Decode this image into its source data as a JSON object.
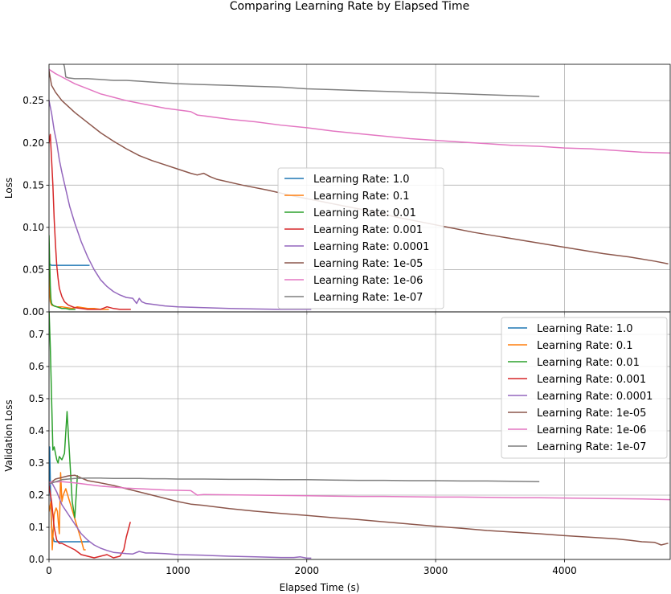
{
  "figure": {
    "suptitle": "Comparing Learning Rate by Elapsed Time"
  },
  "chart_data": [
    {
      "type": "line",
      "title": "",
      "xlabel": "",
      "ylabel": "Loss",
      "xlim": [
        0,
        4820
      ],
      "ylim": [
        0,
        0.293
      ],
      "xticks": [
        0,
        1000,
        2000,
        3000,
        4000
      ],
      "yticks": [
        0.0,
        0.05,
        0.1,
        0.15,
        0.2,
        0.25
      ],
      "ytick_labels": [
        "0.00",
        "0.05",
        "0.10",
        "0.15",
        "0.20",
        "0.25"
      ],
      "show_xtick_labels": false,
      "grid": true,
      "legend_placement": "center",
      "series": [
        {
          "name": "Learning Rate: 1.0",
          "color": "#1f77b4",
          "x": [
            0,
            5,
            10,
            20,
            40,
            100,
            200,
            310
          ],
          "y": [
            0.06,
            0.055,
            0.056,
            0.055,
            0.055,
            0.055,
            0.055,
            0.055
          ]
        },
        {
          "name": "Learning Rate: 0.1",
          "color": "#ff7f0e",
          "x": [
            0,
            5,
            10,
            20,
            40,
            60,
            100,
            140,
            180,
            200,
            220,
            260,
            300,
            350,
            400,
            460
          ],
          "y": [
            0.05,
            0.025,
            0.012,
            0.008,
            0.007,
            0.006,
            0.006,
            0.005,
            0.004,
            0.005,
            0.006,
            0.005,
            0.004,
            0.004,
            0.003,
            0.003
          ]
        },
        {
          "name": "Learning Rate: 0.01",
          "color": "#2ca02c",
          "x": [
            0,
            5,
            10,
            15,
            20,
            30,
            40,
            60,
            80,
            100,
            130,
            160,
            200
          ],
          "y": [
            0.09,
            0.06,
            0.03,
            0.015,
            0.01,
            0.008,
            0.007,
            0.006,
            0.005,
            0.004,
            0.004,
            0.003,
            0.003
          ]
        },
        {
          "name": "Learning Rate: 0.001",
          "color": "#d62728",
          "x": [
            0,
            10,
            20,
            30,
            40,
            50,
            60,
            70,
            80,
            100,
            120,
            150,
            200,
            250,
            300,
            350,
            400,
            450,
            500,
            550,
            600,
            630
          ],
          "y": [
            0.2,
            0.21,
            0.18,
            0.15,
            0.11,
            0.08,
            0.055,
            0.04,
            0.028,
            0.018,
            0.012,
            0.008,
            0.005,
            0.004,
            0.003,
            0.003,
            0.003,
            0.006,
            0.004,
            0.003,
            0.003,
            0.003
          ]
        },
        {
          "name": "Learning Rate: 0.0001",
          "color": "#9467bd",
          "x": [
            0,
            20,
            40,
            60,
            80,
            100,
            130,
            160,
            200,
            250,
            300,
            350,
            400,
            450,
            500,
            550,
            600,
            650,
            680,
            700,
            720,
            750,
            800,
            900,
            1000,
            1200,
            1400,
            1600,
            1800,
            2030
          ],
          "y": [
            0.25,
            0.235,
            0.215,
            0.2,
            0.18,
            0.165,
            0.145,
            0.125,
            0.105,
            0.083,
            0.065,
            0.05,
            0.038,
            0.03,
            0.024,
            0.02,
            0.017,
            0.016,
            0.01,
            0.016,
            0.012,
            0.01,
            0.009,
            0.007,
            0.006,
            0.005,
            0.004,
            0.0035,
            0.003,
            0.003
          ]
        },
        {
          "name": "Learning Rate: 1e-05",
          "color": "#8c564b",
          "x": [
            0,
            20,
            50,
            100,
            150,
            200,
            300,
            400,
            500,
            600,
            700,
            800,
            900,
            1000,
            1100,
            1150,
            1200,
            1250,
            1300,
            1500,
            1700,
            1900,
            2100,
            2300,
            2500,
            2700,
            2900,
            3100,
            3300,
            3500,
            3700,
            3900,
            4100,
            4300,
            4500,
            4700,
            4800
          ],
          "y": [
            0.285,
            0.268,
            0.26,
            0.25,
            0.243,
            0.236,
            0.224,
            0.212,
            0.202,
            0.193,
            0.185,
            0.179,
            0.174,
            0.169,
            0.164,
            0.162,
            0.164,
            0.16,
            0.157,
            0.15,
            0.144,
            0.137,
            0.131,
            0.125,
            0.119,
            0.112,
            0.106,
            0.1,
            0.094,
            0.089,
            0.084,
            0.079,
            0.074,
            0.069,
            0.065,
            0.06,
            0.057
          ]
        },
        {
          "name": "Learning Rate: 1e-06",
          "color": "#e377c2",
          "x": [
            0,
            50,
            100,
            200,
            300,
            400,
            500,
            600,
            700,
            800,
            900,
            1000,
            1100,
            1150,
            1200,
            1400,
            1600,
            1800,
            2000,
            2200,
            2400,
            2600,
            2800,
            3000,
            3200,
            3400,
            3600,
            3800,
            4000,
            4200,
            4400,
            4600,
            4820
          ],
          "y": [
            0.287,
            0.282,
            0.278,
            0.27,
            0.264,
            0.258,
            0.254,
            0.25,
            0.247,
            0.244,
            0.241,
            0.239,
            0.237,
            0.233,
            0.232,
            0.228,
            0.225,
            0.221,
            0.218,
            0.214,
            0.211,
            0.208,
            0.205,
            0.203,
            0.201,
            0.199,
            0.197,
            0.196,
            0.194,
            0.193,
            0.191,
            0.189,
            0.188
          ]
        },
        {
          "name": "Learning Rate: 1e-07",
          "color": "#7f7f7f",
          "x": [
            0,
            50,
            100,
            120,
            130,
            150,
            200,
            300,
            400,
            500,
            600,
            700,
            800,
            900,
            1000,
            1200,
            1400,
            1600,
            1800,
            2000,
            2200,
            2400,
            2600,
            2800,
            3000,
            3200,
            3400,
            3600,
            3800
          ],
          "y": [
            0.3,
            0.3,
            0.3,
            0.29,
            0.278,
            0.277,
            0.276,
            0.276,
            0.275,
            0.274,
            0.274,
            0.273,
            0.272,
            0.271,
            0.27,
            0.269,
            0.268,
            0.267,
            0.266,
            0.264,
            0.263,
            0.262,
            0.261,
            0.26,
            0.259,
            0.258,
            0.257,
            0.256,
            0.255
          ]
        }
      ]
    },
    {
      "type": "line",
      "title": "",
      "xlabel": "Elapsed Time (s)",
      "ylabel": "Validation Loss",
      "xlim": [
        0,
        4820
      ],
      "ylim": [
        0,
        0.77
      ],
      "xticks": [
        0,
        1000,
        2000,
        3000,
        4000
      ],
      "xtick_labels": [
        "0",
        "1000",
        "2000",
        "3000",
        "4000"
      ],
      "yticks": [
        0.0,
        0.1,
        0.2,
        0.3,
        0.4,
        0.5,
        0.6,
        0.7
      ],
      "ytick_labels": [
        "0.0",
        "0.1",
        "0.2",
        "0.3",
        "0.4",
        "0.5",
        "0.6",
        "0.7"
      ],
      "show_xtick_labels": true,
      "grid": true,
      "legend_placement": "top-right",
      "series": [
        {
          "name": "Learning Rate: 1.0",
          "color": "#1f77b4",
          "x": [
            0,
            5,
            10,
            15,
            20,
            30,
            40,
            60,
            100,
            150,
            200,
            250,
            310
          ],
          "y": [
            0.2,
            0.35,
            0.24,
            0.15,
            0.1,
            0.07,
            0.056,
            0.055,
            0.055,
            0.055,
            0.055,
            0.055,
            0.055
          ]
        },
        {
          "name": "Learning Rate: 0.1",
          "color": "#ff7f0e",
          "x": [
            0,
            15,
            25,
            40,
            55,
            65,
            80,
            90,
            100,
            110,
            130,
            160,
            190,
            220,
            250,
            270,
            280
          ],
          "y": [
            0.15,
            0.18,
            0.03,
            0.14,
            0.16,
            0.15,
            0.08,
            0.27,
            0.18,
            0.2,
            0.22,
            0.18,
            0.14,
            0.1,
            0.06,
            0.03,
            0.03
          ]
        },
        {
          "name": "Learning Rate: 0.01",
          "color": "#2ca02c",
          "x": [
            0,
            10,
            20,
            30,
            40,
            50,
            60,
            70,
            80,
            100,
            120,
            140,
            160,
            180,
            200,
            220
          ],
          "y": [
            0.78,
            0.66,
            0.5,
            0.34,
            0.35,
            0.33,
            0.31,
            0.3,
            0.32,
            0.31,
            0.33,
            0.46,
            0.32,
            0.18,
            0.13,
            0.26
          ]
        },
        {
          "name": "Learning Rate: 0.001",
          "color": "#d62728",
          "x": [
            0,
            20,
            40,
            60,
            80,
            100,
            150,
            200,
            250,
            300,
            350,
            400,
            450,
            500,
            550,
            580,
            600,
            630
          ],
          "y": [
            0.23,
            0.18,
            0.1,
            0.06,
            0.05,
            0.05,
            0.04,
            0.03,
            0.015,
            0.01,
            0.005,
            0.01,
            0.015,
            0.005,
            0.01,
            0.03,
            0.07,
            0.115
          ]
        },
        {
          "name": "Learning Rate: 0.0001",
          "color": "#9467bd",
          "x": [
            0,
            20,
            40,
            60,
            80,
            100,
            150,
            200,
            250,
            300,
            350,
            400,
            450,
            500,
            550,
            600,
            650,
            700,
            750,
            800,
            900,
            1000,
            1100,
            1200,
            1400,
            1600,
            1800,
            1900,
            1950,
            2000,
            2030
          ],
          "y": [
            0.23,
            0.24,
            0.225,
            0.21,
            0.19,
            0.17,
            0.14,
            0.11,
            0.08,
            0.06,
            0.045,
            0.035,
            0.028,
            0.022,
            0.02,
            0.018,
            0.017,
            0.025,
            0.02,
            0.02,
            0.018,
            0.015,
            0.014,
            0.013,
            0.01,
            0.008,
            0.006,
            0.006,
            0.008,
            0.004,
            0.004
          ]
        },
        {
          "name": "Learning Rate: 1e-05",
          "color": "#8c564b",
          "x": [
            0,
            50,
            100,
            150,
            200,
            300,
            400,
            500,
            600,
            700,
            800,
            900,
            1000,
            1100,
            1200,
            1400,
            1600,
            1800,
            2000,
            2200,
            2400,
            2600,
            2800,
            3000,
            3200,
            3400,
            3600,
            3800,
            4000,
            4200,
            4400,
            4500,
            4600,
            4700,
            4750,
            4800
          ],
          "y": [
            0.235,
            0.25,
            0.255,
            0.26,
            0.262,
            0.245,
            0.238,
            0.23,
            0.22,
            0.21,
            0.2,
            0.19,
            0.18,
            0.172,
            0.168,
            0.158,
            0.15,
            0.143,
            0.137,
            0.13,
            0.124,
            0.117,
            0.11,
            0.103,
            0.097,
            0.09,
            0.085,
            0.08,
            0.074,
            0.069,
            0.064,
            0.06,
            0.055,
            0.053,
            0.045,
            0.05
          ]
        },
        {
          "name": "Learning Rate: 1e-06",
          "color": "#e377c2",
          "x": [
            0,
            100,
            200,
            300,
            400,
            500,
            600,
            700,
            800,
            900,
            1000,
            1100,
            1150,
            1200,
            1400,
            1600,
            1800,
            2000,
            2200,
            2400,
            2600,
            2800,
            3000,
            3200,
            3400,
            3600,
            3800,
            4000,
            4200,
            4400,
            4600,
            4820
          ],
          "y": [
            0.24,
            0.242,
            0.238,
            0.233,
            0.228,
            0.225,
            0.222,
            0.22,
            0.218,
            0.216,
            0.215,
            0.214,
            0.2,
            0.202,
            0.201,
            0.2,
            0.199,
            0.198,
            0.197,
            0.196,
            0.196,
            0.195,
            0.194,
            0.194,
            0.193,
            0.192,
            0.192,
            0.191,
            0.19,
            0.189,
            0.188,
            0.186
          ]
        },
        {
          "name": "Learning Rate: 1e-07",
          "color": "#7f7f7f",
          "x": [
            0,
            100,
            200,
            300,
            400,
            500,
            600,
            700,
            800,
            900,
            1000,
            1200,
            1400,
            1600,
            1800,
            2000,
            2200,
            2400,
            2600,
            2800,
            3000,
            3200,
            3400,
            3600,
            3800
          ],
          "y": [
            0.235,
            0.248,
            0.252,
            0.253,
            0.253,
            0.252,
            0.252,
            0.252,
            0.251,
            0.251,
            0.25,
            0.25,
            0.249,
            0.249,
            0.248,
            0.248,
            0.247,
            0.246,
            0.246,
            0.245,
            0.245,
            0.244,
            0.244,
            0.243,
            0.242
          ]
        }
      ]
    }
  ]
}
